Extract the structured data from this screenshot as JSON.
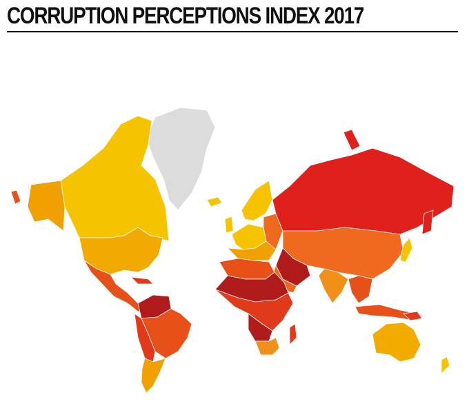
{
  "title": "CORRUPTION PERCEPTIONS INDEX 2017"
}
